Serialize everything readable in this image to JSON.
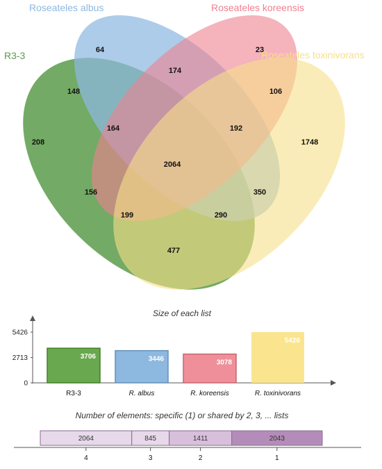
{
  "venn": {
    "sets": [
      {
        "label": "R3-3",
        "color": "#5a9b4a"
      },
      {
        "label": "Roseateles  albus",
        "color": "#8db8e0"
      },
      {
        "label": "Roseateles  koreensis",
        "color": "#ee8090"
      },
      {
        "label": "Roseateles  toxinivorans",
        "color": "#f7e089"
      }
    ],
    "counts": {
      "only_r33": "208",
      "only_albus": "64",
      "only_koreensis": "23",
      "only_toxinivorans": "1748",
      "r33_albus": "148",
      "albus_koreensis": "174",
      "koreensis_toxinivorans": "106",
      "r33_toxinivorans": "477",
      "r33_albus_koreensis": "164",
      "albus_koreensis_toxinivorans": "192",
      "all_four": "2064",
      "r33_koreensis": "156",
      "albus_toxinivorans": "350",
      "r33_koreensis_toxinivorans": "199",
      "r33_albus_toxinivorans": "290"
    }
  },
  "chart_data": [
    {
      "type": "bar",
      "title": "Size of each list",
      "categories": [
        "R3-3",
        "R. albus",
        "R. koreensis",
        "R. toxinivorans"
      ],
      "values": [
        3706,
        3446,
        3078,
        5426
      ],
      "value_labels": [
        "3706",
        "3446",
        "3078",
        "5426"
      ],
      "colors": [
        "#6aa84f",
        "#8db8e0",
        "#ee8f9a",
        "#fae48e"
      ],
      "yticks": [
        "0",
        "2713",
        "5426"
      ],
      "ylim": [
        0,
        5426
      ]
    },
    {
      "type": "bar",
      "title": "Number of elements: specific (1) or shared by 2, 3, ... lists",
      "categories": [
        "4",
        "3",
        "2",
        "1"
      ],
      "values": [
        2064,
        845,
        1411,
        2043
      ],
      "value_labels": [
        "2064",
        "845",
        "1411",
        "2043"
      ],
      "colors": [
        "#e7d9ea",
        "#e7d9ea",
        "#d8c0dc",
        "#b48cb9"
      ]
    }
  ]
}
